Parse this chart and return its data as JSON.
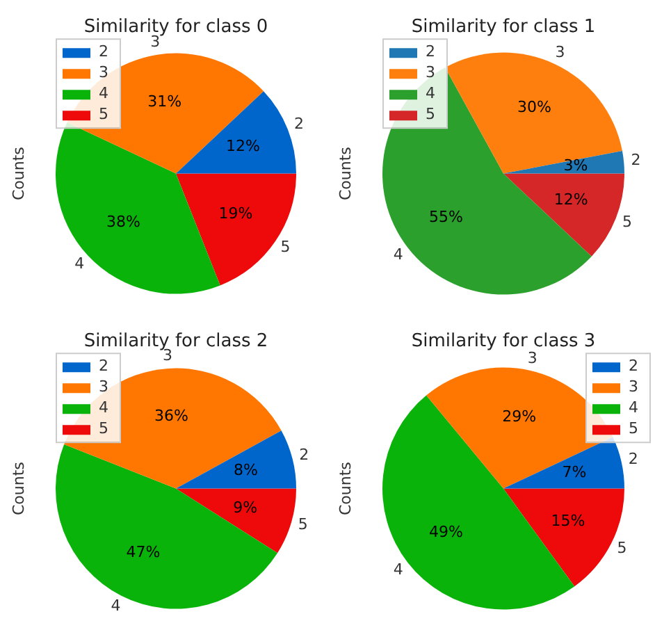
{
  "chart_data": [
    {
      "type": "pie",
      "title": "Similarity for class 0",
      "ylabel": "Counts",
      "legend": "top left",
      "categories": [
        "2",
        "3",
        "4",
        "5"
      ],
      "values": [
        12,
        31,
        38,
        19
      ],
      "value_labels": [
        "12%",
        "31%",
        "38%",
        "19%"
      ],
      "colors": [
        "#0066cc",
        "#ff7700",
        "#0ab30a",
        "#ee0a0a"
      ]
    },
    {
      "type": "pie",
      "title": "Similarity for class 1",
      "ylabel": "Counts",
      "legend": "top left",
      "categories": [
        "2",
        "3",
        "4",
        "5"
      ],
      "values": [
        3,
        30,
        55,
        12
      ],
      "value_labels": [
        "3%",
        "30%",
        "55%",
        "12%"
      ],
      "colors": [
        "#1f77b4",
        "#ff7f0e",
        "#2ca02c",
        "#d62728"
      ]
    },
    {
      "type": "pie",
      "title": "Similarity for class 2",
      "ylabel": "Counts",
      "legend": "top left",
      "categories": [
        "2",
        "3",
        "4",
        "5"
      ],
      "values": [
        8,
        36,
        47,
        9
      ],
      "value_labels": [
        "8%",
        "36%",
        "47%",
        "9%"
      ],
      "colors": [
        "#0066cc",
        "#ff7700",
        "#0ab30a",
        "#ee0a0a"
      ]
    },
    {
      "type": "pie",
      "title": "Similarity for class 3",
      "ylabel": "Counts",
      "legend": "top right",
      "categories": [
        "2",
        "3",
        "4",
        "5"
      ],
      "values": [
        7,
        29,
        49,
        15
      ],
      "value_labels": [
        "7%",
        "29%",
        "49%",
        "15%"
      ],
      "colors": [
        "#0066cc",
        "#ff7700",
        "#0ab30a",
        "#ee0a0a"
      ]
    }
  ]
}
